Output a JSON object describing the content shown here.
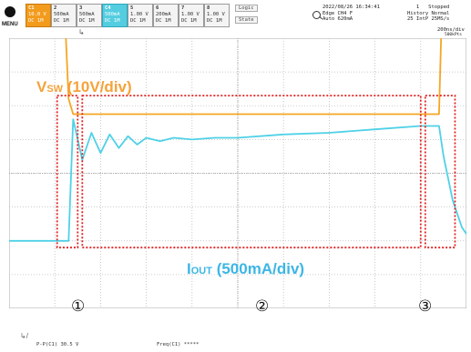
{
  "topbar": {
    "menu_label": "MENU",
    "channels": [
      {
        "n": "C1",
        "l1": "10.0 V",
        "l2": "DC",
        "l3": "1M"
      },
      {
        "n": "2",
        "l1": "500mA",
        "l2": "DC",
        "l3": "1M"
      },
      {
        "n": "3",
        "l1": "500mA",
        "l2": "DC",
        "l3": "1M"
      },
      {
        "n": "C4",
        "l1": "500mA",
        "l2": "DC",
        "l3": "1M"
      },
      {
        "n": "5",
        "l1": "1.00 V",
        "l2": "DC",
        "l3": "1M"
      },
      {
        "n": "6",
        "l1": "200mA",
        "l2": "DC",
        "l3": "1M"
      },
      {
        "n": "7",
        "l1": "1.00 V",
        "l2": "DC",
        "l3": "1M"
      },
      {
        "n": "8",
        "l1": "1.00 V",
        "l2": "DC",
        "l3": "1M"
      }
    ],
    "logic_label": "Logic",
    "state_label": "State",
    "trigger": "2022/08/26 16:34:41\nEdge CH4 F\nAuto 620mA",
    "status": "1   Stopped\nHistory Normal\n25 IntP 25MS/s",
    "timebase": "200ns/div",
    "points": "500kPts",
    "cursor_mark": "↳"
  },
  "annotations": {
    "vsw_main": "V",
    "vsw_sub": "SW",
    "vsw_rest": " (10V/div)",
    "iout_main": "I",
    "iout_sub": "OUT",
    "iout_rest": " (500mA/div)",
    "circle1": "①",
    "circle2": "②",
    "circle3": "③"
  },
  "footer": {
    "icon": "↳/",
    "left": "P-P(C1)  30.5 V",
    "right": "Freq(C1)  *****"
  },
  "chart_data": {
    "type": "line",
    "xlabel": "",
    "ylabel": "",
    "timebase": "200ns/div",
    "x_divisions": 10,
    "y_divisions": 8,
    "grid": true,
    "series": [
      {
        "name": "VSW",
        "color": "#f5a623",
        "x": [
          0,
          0.3,
          0.7,
          1.0,
          1.2,
          1.3,
          1.4,
          1.6,
          2.0,
          3.0,
          4.0,
          5.0,
          6.0,
          7.0,
          8.0,
          9.0,
          9.3,
          9.4,
          9.5,
          9.6,
          9.7,
          9.8,
          9.9,
          10.0
        ],
        "y": [
          5.3,
          5.3,
          5.3,
          5.3,
          5.3,
          2.2,
          1.75,
          1.75,
          1.75,
          1.75,
          1.75,
          1.75,
          1.75,
          1.75,
          1.75,
          1.75,
          1.75,
          1.75,
          6.7,
          6.0,
          6.2,
          6.6,
          6.1,
          6.3
        ]
      },
      {
        "name": "IOUT",
        "color": "#4fd1e6",
        "x": [
          0,
          0.5,
          1.0,
          1.3,
          1.4,
          1.6,
          1.8,
          2.0,
          2.2,
          2.4,
          2.6,
          2.8,
          3.0,
          3.3,
          3.6,
          4.0,
          4.5,
          5.0,
          6.0,
          7.0,
          8.0,
          9.0,
          9.4,
          9.5,
          9.7,
          9.9,
          10.0
        ],
        "y": [
          -2.0,
          -2.0,
          -2.0,
          -2.0,
          1.6,
          0.4,
          1.2,
          0.6,
          1.15,
          0.75,
          1.1,
          0.85,
          1.05,
          0.95,
          1.05,
          1.0,
          1.05,
          1.05,
          1.15,
          1.2,
          1.3,
          1.4,
          1.4,
          0.5,
          -0.8,
          -1.6,
          -1.8
        ]
      }
    ]
  }
}
